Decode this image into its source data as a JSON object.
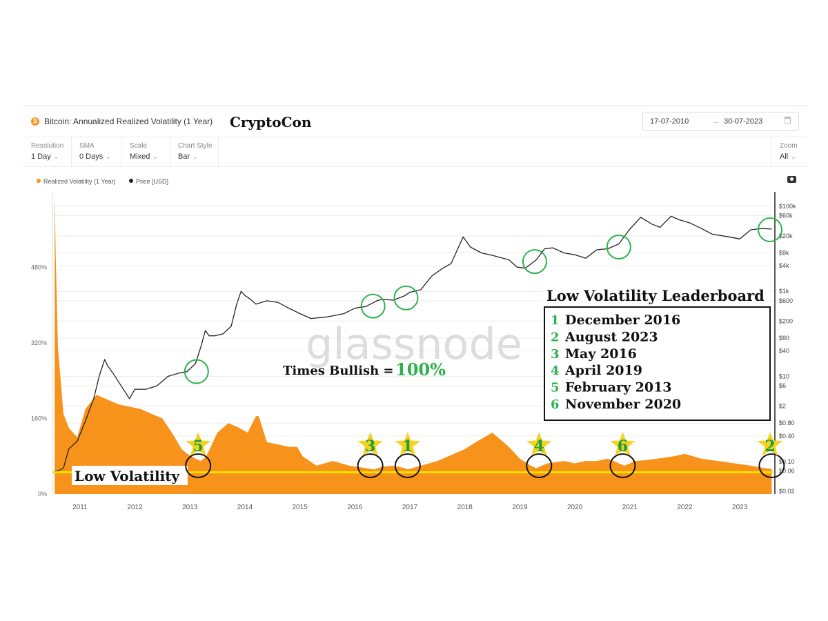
{
  "header": {
    "coin_glyph": "₿",
    "title": "Bitcoin: Annualized Realized Volatility (1 Year)",
    "brand": "CryptoCon",
    "date_from": "17-07-2010",
    "arrow": "→",
    "date_to": "30-07-2023"
  },
  "controls": [
    {
      "label": "Resolution",
      "value": "1 Day"
    },
    {
      "label": "SMA",
      "value": "0 Days"
    },
    {
      "label": "Scale",
      "value": "Mixed"
    },
    {
      "label": "Chart Style",
      "value": "Bar"
    }
  ],
  "zoom": {
    "label": "Zoom",
    "value": "All"
  },
  "chart_data": {
    "type": "area",
    "watermark": "glassnode",
    "legend": [
      {
        "label": "Realized Volatility (1 Year)",
        "color": "#f7931a"
      },
      {
        "label": "Price [USD]",
        "color": "#222222"
      }
    ],
    "x_ticks": [
      "2011",
      "2012",
      "2013",
      "2014",
      "2015",
      "2016",
      "2017",
      "2018",
      "2019",
      "2020",
      "2021",
      "2022",
      "2023"
    ],
    "y_left_ticks": [
      "0%",
      "160%",
      "320%",
      "480%"
    ],
    "y_left_range": [
      0,
      640
    ],
    "y_right_ticks": [
      "$100k",
      "$60k",
      "$20k",
      "$8k",
      "$4k",
      "$1k",
      "$600",
      "$200",
      "$80",
      "$40",
      "$10",
      "$6",
      "$2",
      "$0.80",
      "$0.40",
      "$0.10",
      "$0.06",
      "$0.02"
    ],
    "y_right_scale": "log",
    "series": [
      {
        "name": "Realized Volatility (1 Year)",
        "color": "#f7931a",
        "x": [
          2010.54,
          2010.56,
          2010.6,
          2010.65,
          2010.7,
          2010.8,
          2010.95,
          2011.1,
          2011.3,
          2011.5,
          2011.7,
          2011.9,
          2012.1,
          2012.3,
          2012.5,
          2012.7,
          2012.85,
          2012.95,
          2013.1,
          2013.2,
          2013.3,
          2013.5,
          2013.7,
          2013.9,
          2014.05,
          2014.2,
          2014.25,
          2014.4,
          2014.6,
          2014.8,
          2014.95,
          2015.05,
          2015.3,
          2015.6,
          2015.9,
          2016.2,
          2016.35,
          2016.5,
          2016.7,
          2016.9,
          2016.96,
          2017.2,
          2017.5,
          2017.8,
          2018.0,
          2018.2,
          2018.5,
          2018.8,
          2019.0,
          2019.2,
          2019.3,
          2019.5,
          2019.8,
          2020.0,
          2020.2,
          2020.4,
          2020.6,
          2020.8,
          2020.9,
          2021.1,
          2021.3,
          2021.5,
          2021.8,
          2022.0,
          2022.3,
          2022.6,
          2022.9,
          2023.2,
          2023.45,
          2023.58
        ],
        "values": [
          640,
          500,
          310,
          240,
          170,
          140,
          120,
          180,
          210,
          200,
          190,
          185,
          180,
          170,
          160,
          125,
          95,
          85,
          75,
          70,
          80,
          130,
          150,
          140,
          130,
          165,
          165,
          110,
          105,
          100,
          100,
          80,
          60,
          70,
          60,
          55,
          52,
          58,
          60,
          55,
          52,
          60,
          70,
          85,
          95,
          110,
          130,
          100,
          75,
          60,
          55,
          65,
          70,
          65,
          70,
          70,
          75,
          65,
          60,
          70,
          72,
          75,
          80,
          85,
          75,
          70,
          65,
          60,
          55,
          53
        ]
      },
      {
        "name": "Price [USD]",
        "color": "#222222",
        "x": [
          2010.55,
          2010.6,
          2010.7,
          2010.8,
          2010.95,
          2011.1,
          2011.25,
          2011.35,
          2011.45,
          2011.5,
          2011.6,
          2011.75,
          2011.9,
          2012.0,
          2012.2,
          2012.4,
          2012.6,
          2012.8,
          2012.95,
          2013.1,
          2013.2,
          2013.28,
          2013.35,
          2013.45,
          2013.6,
          2013.75,
          2013.85,
          2013.93,
          2014.0,
          2014.1,
          2014.2,
          2014.4,
          2014.6,
          2014.8,
          2015.0,
          2015.2,
          2015.5,
          2015.8,
          2016.0,
          2016.2,
          2016.4,
          2016.5,
          2016.7,
          2016.9,
          2017.0,
          2017.2,
          2017.4,
          2017.6,
          2017.75,
          2017.9,
          2017.97,
          2018.1,
          2018.3,
          2018.5,
          2018.8,
          2018.95,
          2019.1,
          2019.3,
          2019.45,
          2019.6,
          2019.8,
          2020.0,
          2020.2,
          2020.4,
          2020.6,
          2020.8,
          2021.0,
          2021.2,
          2021.4,
          2021.55,
          2021.75,
          2021.9,
          2022.1,
          2022.3,
          2022.5,
          2022.8,
          2023.0,
          2023.2,
          2023.4,
          2023.58
        ],
        "values": [
          0.06,
          0.06,
          0.07,
          0.2,
          0.3,
          0.9,
          3,
          10,
          25,
          18,
          12,
          6,
          3,
          5,
          5,
          6,
          10,
          12,
          13,
          20,
          50,
          120,
          90,
          90,
          100,
          150,
          500,
          1000,
          800,
          650,
          500,
          600,
          550,
          400,
          300,
          230,
          250,
          300,
          400,
          440,
          600,
          650,
          620,
          780,
          950,
          1100,
          2300,
          3500,
          4500,
          12000,
          19000,
          11000,
          8000,
          7000,
          5500,
          3700,
          3500,
          5500,
          10000,
          10500,
          8000,
          7200,
          6000,
          9500,
          10000,
          13000,
          29000,
          55000,
          38000,
          32000,
          58000,
          48000,
          40000,
          30000,
          22000,
          19000,
          17000,
          28000,
          30000,
          29000
        ]
      }
    ],
    "annotations": {
      "low_volatility_label": "Low Volatility",
      "low_volatility_level": 46,
      "times_bullish_label": "Times Bullish =",
      "times_bullish_value": "100%",
      "leaderboard_title": "Low Volatility Leaderboard",
      "leaderboard": [
        {
          "rank": "1",
          "period": "December 2016"
        },
        {
          "rank": "2",
          "period": "August 2023"
        },
        {
          "rank": "3",
          "period": "May 2016"
        },
        {
          "rank": "4",
          "period": "April 2019"
        },
        {
          "rank": "5",
          "period": "February 2013"
        },
        {
          "rank": "6",
          "period": "November 2020"
        }
      ],
      "stars": [
        {
          "label": "5",
          "x": 2013.15
        },
        {
          "label": "3",
          "x": 2016.28
        },
        {
          "label": "1",
          "x": 2016.96
        },
        {
          "label": "4",
          "x": 2019.35
        },
        {
          "label": "6",
          "x": 2020.87
        },
        {
          "label": "2",
          "x": 2023.55
        }
      ],
      "vol_circles_x": [
        2013.15,
        2016.28,
        2016.96,
        2019.35,
        2020.87,
        2023.58
      ],
      "price_circles": [
        {
          "x": 2013.12,
          "price": 13
        },
        {
          "x": 2016.33,
          "price": 450
        },
        {
          "x": 2016.93,
          "price": 700
        },
        {
          "x": 2019.27,
          "price": 5000
        },
        {
          "x": 2020.8,
          "price": 11000
        },
        {
          "x": 2023.55,
          "price": 28000
        }
      ]
    }
  }
}
